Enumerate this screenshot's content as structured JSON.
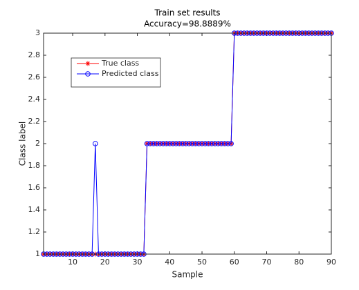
{
  "chart_data": {
    "type": "line",
    "title": "Train set results",
    "subtitle": "Accuracy=98.8889%",
    "xlabel": "Sample",
    "ylabel": "Class label",
    "x": [
      1,
      2,
      3,
      4,
      5,
      6,
      7,
      8,
      9,
      10,
      11,
      12,
      13,
      14,
      15,
      16,
      17,
      18,
      19,
      20,
      21,
      22,
      23,
      24,
      25,
      26,
      27,
      28,
      29,
      30,
      31,
      32,
      33,
      34,
      35,
      36,
      37,
      38,
      39,
      40,
      41,
      42,
      43,
      44,
      45,
      46,
      47,
      48,
      49,
      50,
      51,
      52,
      53,
      54,
      55,
      56,
      57,
      58,
      59,
      60,
      61,
      62,
      63,
      64,
      65,
      66,
      67,
      68,
      69,
      70,
      71,
      72,
      73,
      74,
      75,
      76,
      77,
      78,
      79,
      80,
      81,
      82,
      83,
      84,
      85,
      86,
      87,
      88,
      89,
      90
    ],
    "series": [
      {
        "name": "True class",
        "color": "#ff0000",
        "marker": "*",
        "values": [
          1,
          1,
          1,
          1,
          1,
          1,
          1,
          1,
          1,
          1,
          1,
          1,
          1,
          1,
          1,
          1,
          1,
          1,
          1,
          1,
          1,
          1,
          1,
          1,
          1,
          1,
          1,
          1,
          1,
          1,
          1,
          1,
          2,
          2,
          2,
          2,
          2,
          2,
          2,
          2,
          2,
          2,
          2,
          2,
          2,
          2,
          2,
          2,
          2,
          2,
          2,
          2,
          2,
          2,
          2,
          2,
          2,
          2,
          2,
          3,
          3,
          3,
          3,
          3,
          3,
          3,
          3,
          3,
          3,
          3,
          3,
          3,
          3,
          3,
          3,
          3,
          3,
          3,
          3,
          3,
          3,
          3,
          3,
          3,
          3,
          3,
          3,
          3,
          3,
          3
        ]
      },
      {
        "name": "Predicted class",
        "color": "#0000ff",
        "marker": "o",
        "values": [
          1,
          1,
          1,
          1,
          1,
          1,
          1,
          1,
          1,
          1,
          1,
          1,
          1,
          1,
          1,
          1,
          2,
          1,
          1,
          1,
          1,
          1,
          1,
          1,
          1,
          1,
          1,
          1,
          1,
          1,
          1,
          1,
          2,
          2,
          2,
          2,
          2,
          2,
          2,
          2,
          2,
          2,
          2,
          2,
          2,
          2,
          2,
          2,
          2,
          2,
          2,
          2,
          2,
          2,
          2,
          2,
          2,
          2,
          2,
          3,
          3,
          3,
          3,
          3,
          3,
          3,
          3,
          3,
          3,
          3,
          3,
          3,
          3,
          3,
          3,
          3,
          3,
          3,
          3,
          3,
          3,
          3,
          3,
          3,
          3,
          3,
          3,
          3,
          3,
          3
        ]
      }
    ],
    "xlim": [
      1,
      90
    ],
    "xticks": [
      10,
      20,
      30,
      40,
      50,
      60,
      70,
      80,
      90
    ],
    "ylim": [
      1,
      3
    ],
    "yticks": [
      1,
      1.2,
      1.4,
      1.6,
      1.8,
      2,
      2.2,
      2.4,
      2.6,
      2.8,
      3
    ],
    "legend": "northwest"
  }
}
